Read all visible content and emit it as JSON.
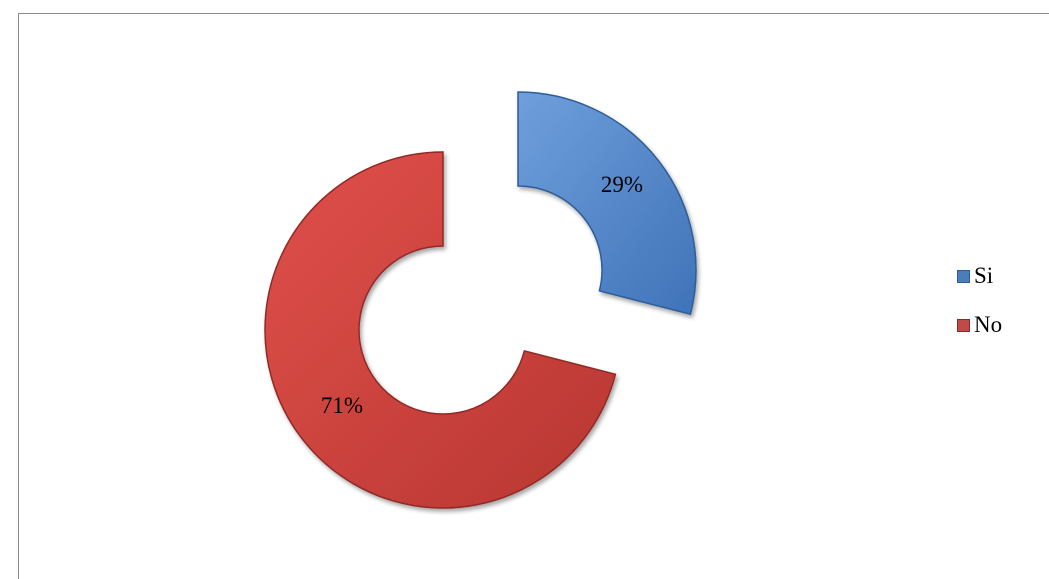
{
  "chart_data": {
    "type": "pie",
    "variant": "exploded-doughnut",
    "title": "",
    "series": [
      {
        "categories": [
          "Si",
          "No"
        ],
        "values": [
          29,
          71
        ],
        "labels": [
          "29%",
          "71%"
        ],
        "colors": [
          "#4a7ebb",
          "#be4b48"
        ]
      }
    ],
    "legend": {
      "position": "right",
      "entries": [
        "Si",
        "No"
      ]
    }
  },
  "style": {
    "si_gradient": [
      "#6f9fdc",
      "#3f73b8"
    ],
    "no_gradient": [
      "#e0504a",
      "#b83632"
    ],
    "si_edge": "#2e5d99",
    "no_edge": "#8f2a26"
  }
}
